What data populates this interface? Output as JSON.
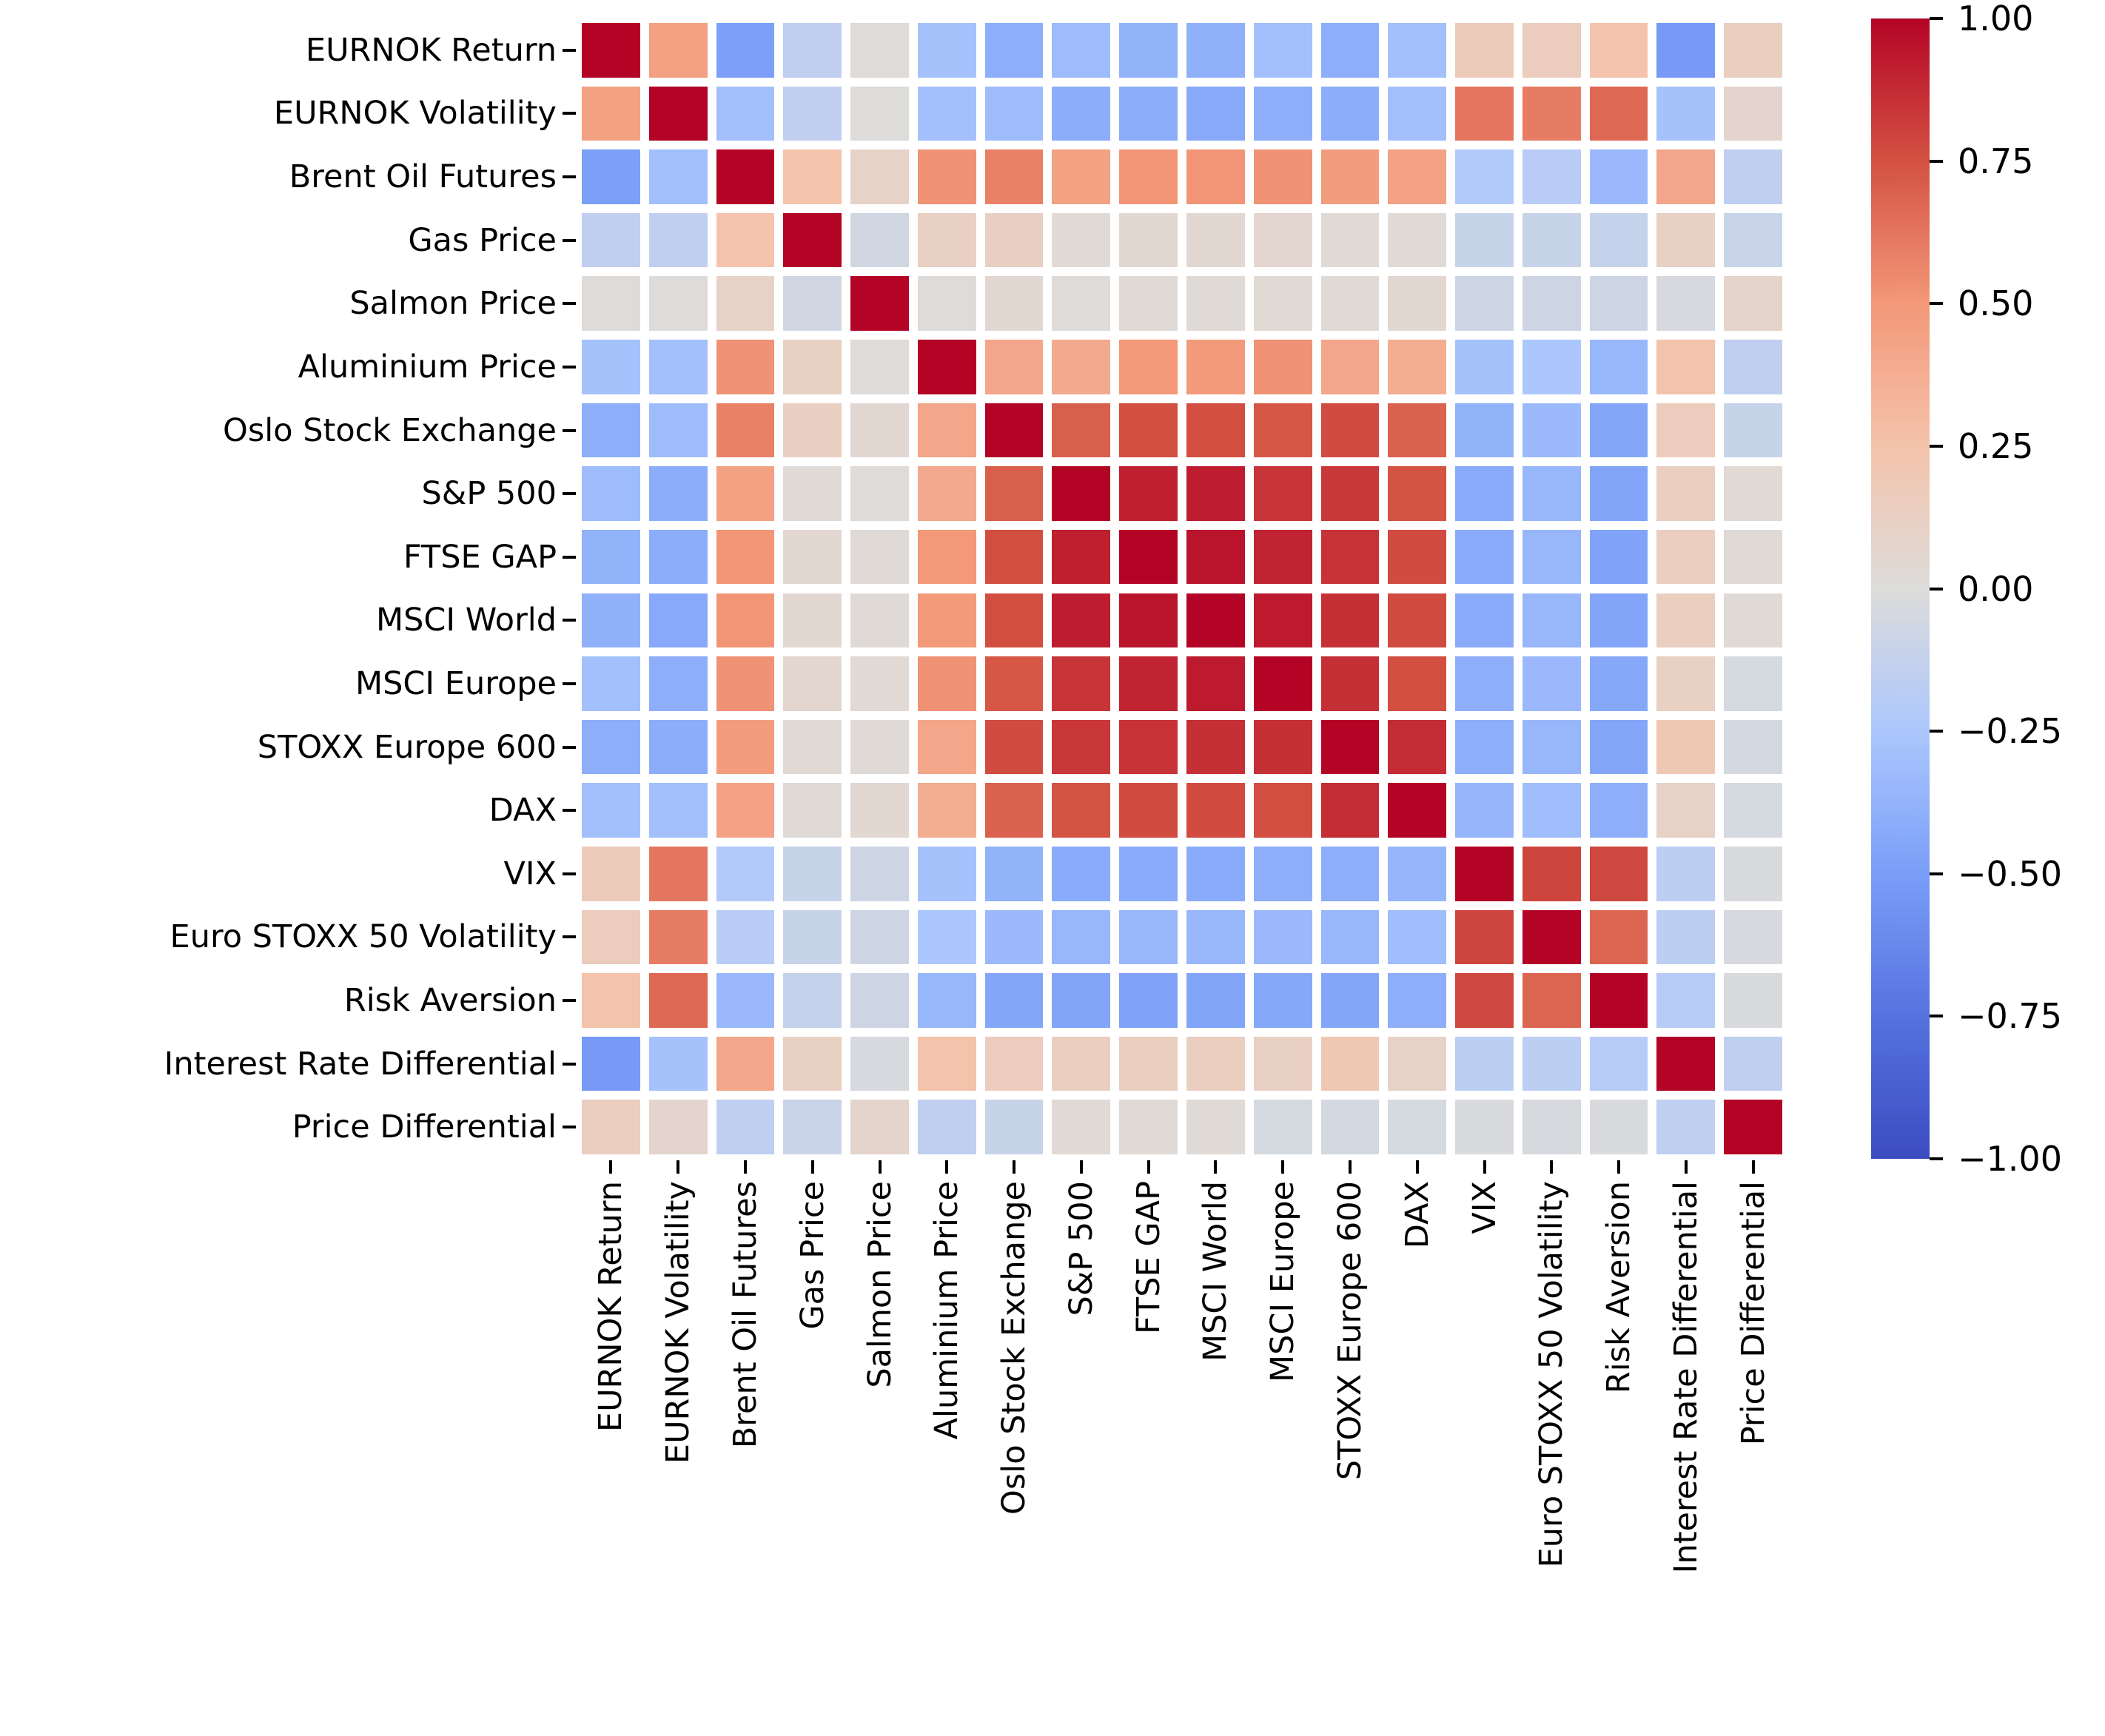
{
  "figure": {
    "background_color": "#ffffff",
    "gridline_color": "#ffffff"
  },
  "chart_data": {
    "type": "heatmap",
    "title": "",
    "xlabel": "",
    "ylabel": "",
    "legend_position": "colorbar-right",
    "grid": false,
    "x_tick_rotation_deg": 90,
    "labels": [
      "EURNOK Return",
      "EURNOK Volatility",
      "Brent Oil Futures",
      "Gas Price",
      "Salmon Price",
      "Aluminium Price",
      "Oslo Stock Exchange",
      "S&P 500",
      "FTSE GAP",
      "MSCI World",
      "MSCI Europe",
      "STOXX Europe 600",
      "DAX",
      "VIX",
      "Euro STOXX 50 Volatility",
      "Risk Aversion",
      "Interest Rate Differential",
      "Price Differential"
    ],
    "matrix": [
      [
        1.0,
        0.45,
        -0.49,
        -0.15,
        0.01,
        -0.28,
        -0.4,
        -0.32,
        -0.38,
        -0.39,
        -0.29,
        -0.4,
        -0.29,
        0.17,
        0.16,
        0.25,
        -0.52,
        0.14
      ],
      [
        0.45,
        1.0,
        -0.3,
        -0.15,
        0.0,
        -0.29,
        -0.32,
        -0.41,
        -0.41,
        -0.43,
        -0.4,
        -0.41,
        -0.3,
        0.62,
        0.6,
        0.67,
        -0.28,
        0.07
      ],
      [
        -0.49,
        -0.3,
        1.0,
        0.25,
        0.1,
        0.52,
        0.58,
        0.45,
        0.51,
        0.51,
        0.52,
        0.47,
        0.44,
        -0.22,
        -0.19,
        -0.34,
        0.42,
        -0.16
      ],
      [
        -0.15,
        -0.15,
        0.25,
        1.0,
        -0.06,
        0.12,
        0.13,
        0.02,
        0.05,
        0.05,
        0.06,
        0.03,
        0.02,
        -0.11,
        -0.11,
        -0.12,
        0.12,
        -0.1
      ],
      [
        0.01,
        0.0,
        0.1,
        -0.06,
        1.0,
        0.01,
        0.05,
        0.01,
        0.02,
        0.02,
        0.03,
        0.02,
        0.05,
        -0.08,
        -0.08,
        -0.08,
        -0.03,
        0.08
      ],
      [
        -0.28,
        -0.29,
        0.52,
        0.12,
        0.01,
        1.0,
        0.42,
        0.4,
        0.5,
        0.49,
        0.52,
        0.42,
        0.38,
        -0.28,
        -0.25,
        -0.35,
        0.25,
        -0.15
      ],
      [
        -0.4,
        -0.32,
        0.58,
        0.13,
        0.05,
        0.42,
        1.0,
        0.7,
        0.76,
        0.76,
        0.73,
        0.77,
        0.69,
        -0.38,
        -0.33,
        -0.45,
        0.16,
        -0.11
      ],
      [
        -0.32,
        -0.41,
        0.45,
        0.02,
        0.01,
        0.4,
        0.7,
        1.0,
        0.91,
        0.92,
        0.84,
        0.83,
        0.74,
        -0.42,
        -0.35,
        -0.46,
        0.14,
        0.03
      ],
      [
        -0.38,
        -0.41,
        0.51,
        0.05,
        0.02,
        0.5,
        0.76,
        0.91,
        1.0,
        0.95,
        0.9,
        0.85,
        0.77,
        -0.42,
        -0.35,
        -0.47,
        0.14,
        0.02
      ],
      [
        -0.39,
        -0.43,
        0.51,
        0.05,
        0.02,
        0.49,
        0.76,
        0.92,
        0.95,
        1.0,
        0.93,
        0.86,
        0.77,
        -0.42,
        -0.35,
        -0.46,
        0.14,
        0.02
      ],
      [
        -0.29,
        -0.4,
        0.52,
        0.06,
        0.03,
        0.52,
        0.73,
        0.84,
        0.9,
        0.93,
        1.0,
        0.86,
        0.76,
        -0.4,
        -0.34,
        -0.44,
        0.12,
        -0.04
      ],
      [
        -0.4,
        -0.41,
        0.47,
        0.03,
        0.02,
        0.42,
        0.77,
        0.83,
        0.85,
        0.86,
        0.86,
        1.0,
        0.87,
        -0.4,
        -0.35,
        -0.45,
        0.2,
        -0.05
      ],
      [
        -0.29,
        -0.3,
        0.44,
        0.02,
        0.05,
        0.38,
        0.69,
        0.74,
        0.77,
        0.77,
        0.76,
        0.87,
        1.0,
        -0.36,
        -0.31,
        -0.4,
        0.1,
        -0.04
      ],
      [
        0.17,
        0.62,
        -0.22,
        -0.11,
        -0.08,
        -0.28,
        -0.38,
        -0.42,
        -0.42,
        -0.42,
        -0.4,
        -0.4,
        -0.36,
        1.0,
        0.79,
        0.78,
        -0.17,
        -0.02
      ],
      [
        0.16,
        0.6,
        -0.19,
        -0.11,
        -0.08,
        -0.25,
        -0.33,
        -0.35,
        -0.35,
        -0.35,
        -0.34,
        -0.35,
        -0.31,
        0.79,
        1.0,
        0.68,
        -0.17,
        -0.03
      ],
      [
        0.25,
        0.67,
        -0.34,
        -0.12,
        -0.08,
        -0.35,
        -0.45,
        -0.46,
        -0.47,
        -0.46,
        -0.44,
        -0.45,
        -0.4,
        0.78,
        0.68,
        1.0,
        -0.2,
        -0.02
      ],
      [
        -0.52,
        -0.28,
        0.42,
        0.12,
        -0.03,
        0.25,
        0.16,
        0.14,
        0.14,
        0.14,
        0.12,
        0.2,
        0.1,
        -0.17,
        -0.17,
        -0.2,
        1.0,
        -0.16
      ],
      [
        0.14,
        0.07,
        -0.16,
        -0.1,
        0.08,
        -0.15,
        -0.11,
        0.03,
        0.02,
        0.02,
        -0.04,
        -0.05,
        -0.04,
        -0.02,
        -0.03,
        -0.02,
        -0.16,
        1.0
      ]
    ],
    "colormap": {
      "name": "coolwarm",
      "vmin": -1.0,
      "vmax": 1.0,
      "negative_end_color": "#3b4cc0",
      "midpoint_color": "#dddcda",
      "positive_end_color": "#b40426"
    },
    "colorbar": {
      "tick_labels": [
        "1.00",
        "0.75",
        "0.50",
        "0.25",
        "0.00",
        "−0.25",
        "−0.50",
        "−0.75",
        "−1.00"
      ],
      "tick_values": [
        1.0,
        0.75,
        0.5,
        0.25,
        0.0,
        -0.25,
        -0.5,
        -0.75,
        -1.0
      ]
    }
  }
}
